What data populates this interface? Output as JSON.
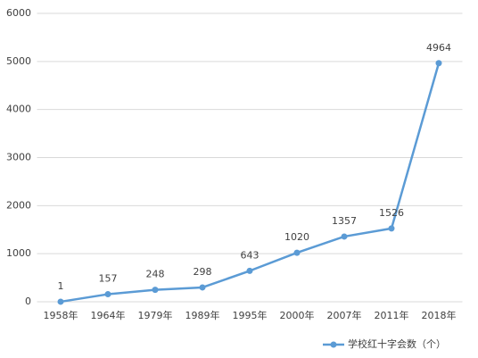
{
  "chart_data": {
    "type": "line",
    "categories": [
      "1958年",
      "1964年",
      "1979年",
      "1989年",
      "1995年",
      "2000年",
      "2007年",
      "2011年",
      "2018年"
    ],
    "series": [
      {
        "name": "学校红十字会数（个）",
        "color": "#5b9bd5",
        "values": [
          1,
          157,
          248,
          298,
          643,
          1020,
          1357,
          1526,
          4964
        ]
      }
    ],
    "ylim": [
      0,
      6000
    ],
    "yticks": [
      0,
      1000,
      2000,
      3000,
      4000,
      5000,
      6000
    ],
    "grid": true,
    "legend": "bottom-right"
  }
}
